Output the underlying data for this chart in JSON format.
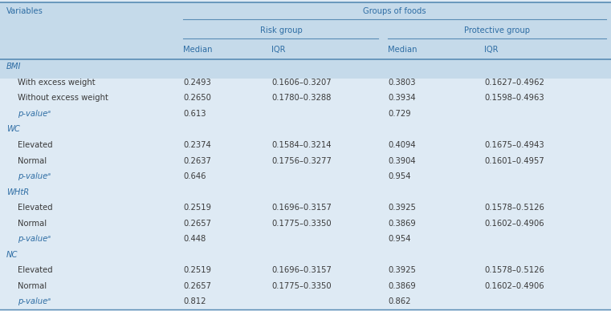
{
  "header_bg": "#c5daea",
  "body_bg": "#deeaf4",
  "col1_header": "Variables",
  "col_group_header": "Groups of foods",
  "subgroup1_header": "Risk group",
  "subgroup2_header": "Protective group",
  "col_headers": [
    "Median",
    "IQR",
    "Median",
    "IQR"
  ],
  "sections": [
    {
      "section_label": "BMI",
      "rows": [
        {
          "label": "With excess weight",
          "indent": true,
          "italic": false,
          "values": [
            "0.2493",
            "0.1606–0.3207",
            "0.3803",
            "0.1627–0.4962"
          ]
        },
        {
          "label": "Without excess weight",
          "indent": true,
          "italic": false,
          "values": [
            "0.2650",
            "0.1780–0.3288",
            "0.3934",
            "0.1598–0.4963"
          ]
        },
        {
          "label": "p-valueᵃ",
          "indent": true,
          "italic": true,
          "values": [
            "0.613",
            "",
            "0.729",
            ""
          ]
        }
      ]
    },
    {
      "section_label": "WC",
      "rows": [
        {
          "label": "Elevated",
          "indent": true,
          "italic": false,
          "values": [
            "0.2374",
            "0.1584–0.3214",
            "0.4094",
            "0.1675–0.4943"
          ]
        },
        {
          "label": "Normal",
          "indent": true,
          "italic": false,
          "values": [
            "0.2637",
            "0.1756–0.3277",
            "0.3904",
            "0.1601–0.4957"
          ]
        },
        {
          "label": "p-valueᵃ",
          "indent": true,
          "italic": true,
          "values": [
            "0.646",
            "",
            "0.954",
            ""
          ]
        }
      ]
    },
    {
      "section_label": "WHtR",
      "rows": [
        {
          "label": "Elevated",
          "indent": true,
          "italic": false,
          "values": [
            "0.2519",
            "0.1696–0.3157",
            "0.3925",
            "0.1578–0.5126"
          ]
        },
        {
          "label": "Normal",
          "indent": true,
          "italic": false,
          "values": [
            "0.2657",
            "0.1775–0.3350",
            "0.3869",
            "0.1602–0.4906"
          ]
        },
        {
          "label": "p-valueᵃ",
          "indent": true,
          "italic": true,
          "values": [
            "0.448",
            "",
            "0.954",
            ""
          ]
        }
      ]
    },
    {
      "section_label": "NC",
      "rows": [
        {
          "label": "Elevated",
          "indent": true,
          "italic": false,
          "values": [
            "0.2519",
            "0.1696–0.3157",
            "0.3925",
            "0.1578–0.5126"
          ]
        },
        {
          "label": "Normal",
          "indent": true,
          "italic": false,
          "values": [
            "0.2657",
            "0.1775–0.3350",
            "0.3869",
            "0.1602–0.4906"
          ]
        },
        {
          "label": "p-valueᵃ",
          "indent": true,
          "italic": true,
          "values": [
            "0.812",
            "",
            "0.862",
            ""
          ]
        }
      ]
    }
  ],
  "text_color": "#2e6da4",
  "data_text_color": "#3a3a3a",
  "line_color": "#5a8db5",
  "header_bg_color": "#c5daea",
  "body_bg_color": "#deeaf4",
  "font_size": 7.2
}
